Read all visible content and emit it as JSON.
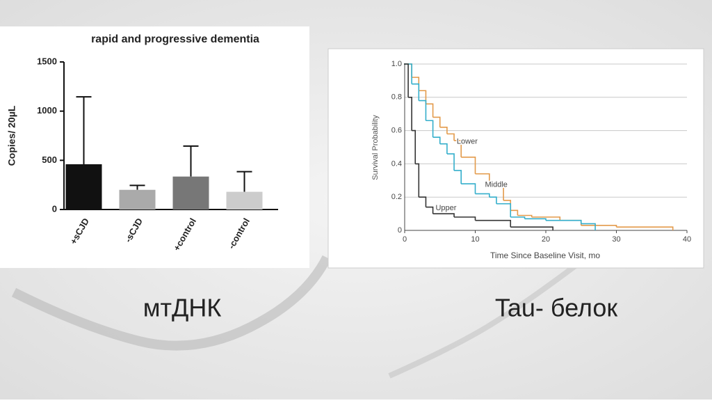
{
  "chart_data": [
    {
      "type": "bar",
      "title": "rapid and progressive dementia",
      "y_label": "Copies/ 20µL",
      "categories": [
        "+sCJD",
        "-sCJD",
        "+control",
        "-control"
      ],
      "values": [
        460,
        200,
        335,
        180
      ],
      "errors": [
        685,
        45,
        310,
        205
      ],
      "colors": [
        "#111111",
        "#aaaaaa",
        "#777777",
        "#cccccc"
      ],
      "ylim": [
        0,
        1500
      ],
      "yticks": [
        0,
        500,
        1000,
        1500
      ],
      "grid": false
    },
    {
      "type": "line",
      "step": true,
      "x_label": "Time Since Baseline Visit, mo",
      "y_label": "Survival Probability",
      "xlim": [
        0,
        40
      ],
      "xticks": [
        0,
        10,
        20,
        30,
        40
      ],
      "ylim": [
        0,
        1
      ],
      "yticks": [
        0,
        0.2,
        0.4,
        0.6,
        0.8,
        {
          "value": 1,
          "label": "1.0"
        }
      ],
      "grid": true,
      "series": [
        {
          "name": "Lower",
          "color": "#e39a4a",
          "x": [
            0,
            1,
            2,
            3,
            4,
            5,
            6,
            7,
            8,
            10,
            12,
            14,
            15,
            16,
            18,
            22,
            25,
            30,
            38
          ],
          "values": [
            1,
            0.92,
            0.84,
            0.76,
            0.68,
            0.62,
            0.58,
            0.54,
            0.44,
            0.34,
            0.26,
            0.18,
            0.12,
            0.09,
            0.08,
            0.06,
            0.03,
            0.02,
            0
          ]
        },
        {
          "name": "Middle",
          "color": "#33aecb",
          "x": [
            0,
            1,
            2,
            3,
            4,
            5,
            6,
            7,
            8,
            10,
            12,
            13,
            15,
            17,
            20,
            25,
            27
          ],
          "values": [
            1,
            0.88,
            0.78,
            0.66,
            0.56,
            0.52,
            0.46,
            0.36,
            0.28,
            0.22,
            0.2,
            0.16,
            0.08,
            0.07,
            0.06,
            0.04,
            0
          ]
        },
        {
          "name": "Upper",
          "color": "#333333",
          "x": [
            0,
            0.5,
            1,
            1.5,
            2,
            3,
            4,
            7,
            10,
            15,
            21
          ],
          "values": [
            1,
            0.8,
            0.6,
            0.4,
            0.2,
            0.14,
            0.1,
            0.08,
            0.06,
            0.02,
            0
          ]
        }
      ]
    }
  ],
  "captions": [
    "мтДНК",
    "Tau- белок"
  ]
}
